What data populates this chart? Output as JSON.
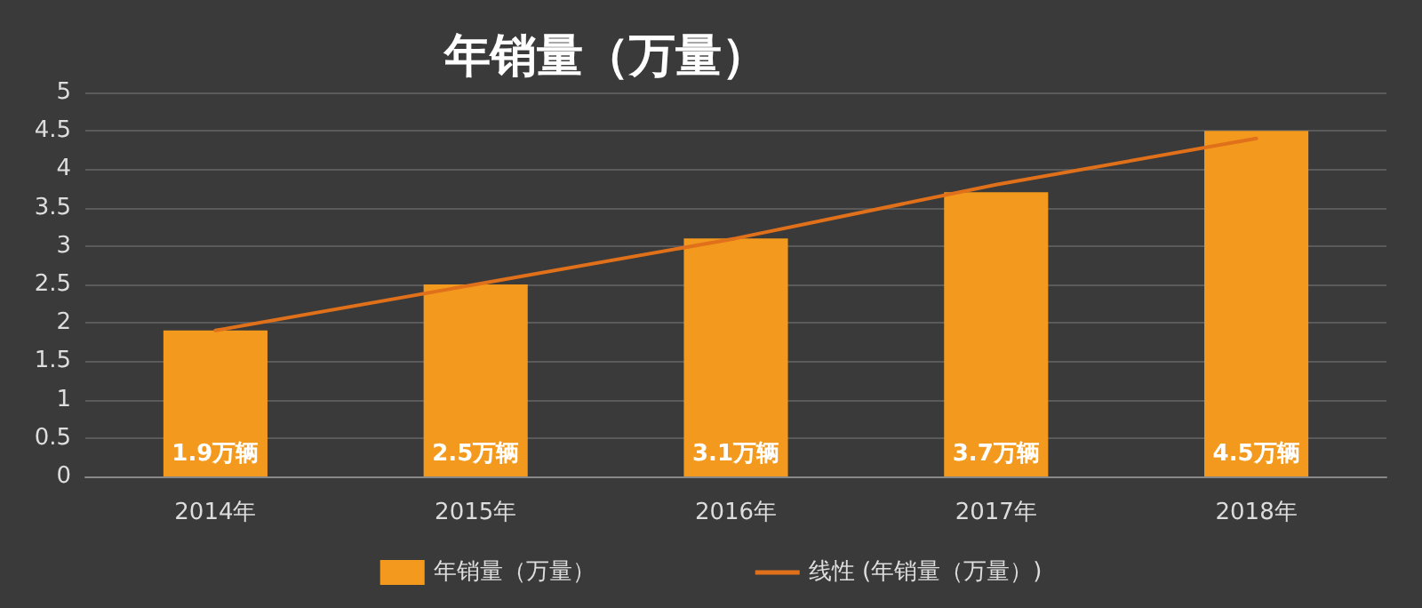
{
  "chart_data": {
    "type": "bar",
    "title": "年销量（万量）",
    "categories": [
      "2014年",
      "2015年",
      "2016年",
      "2017年",
      "2018年"
    ],
    "series": [
      {
        "name": "年销量（万量）",
        "color": "#f39a1e",
        "values": [
          1.9,
          2.5,
          3.1,
          3.7,
          4.5
        ],
        "value_labels": [
          "1.9万辆",
          "2.5万辆",
          "3.1万辆",
          "3.7万辆",
          "4.5万辆"
        ]
      },
      {
        "name": "线性 (年销量（万量）)",
        "type": "line",
        "color": "#e0701a",
        "values": [
          1.9,
          2.5,
          3.1,
          3.8,
          4.4
        ]
      }
    ],
    "ylim": [
      0,
      5
    ],
    "yticks": [
      0,
      0.5,
      1,
      1.5,
      2,
      2.5,
      3,
      3.5,
      4,
      4.5,
      5
    ],
    "grid": "y",
    "legend": "bottom",
    "marker": "none"
  }
}
